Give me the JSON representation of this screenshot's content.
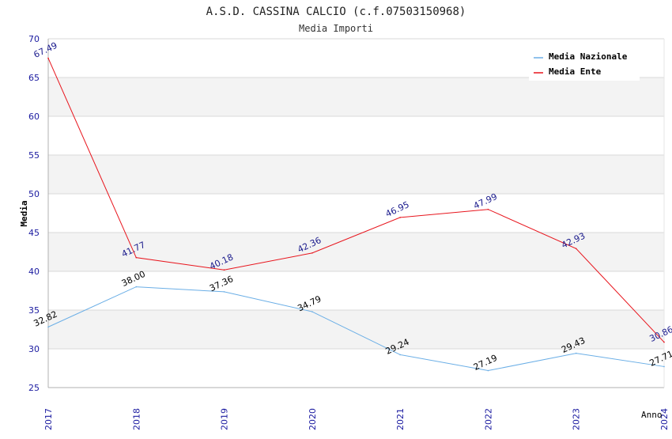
{
  "chart_data": {
    "type": "line",
    "title": "A.S.D. CASSINA CALCIO (c.f.07503150968)",
    "subtitle": "Media Importi",
    "xlabel": "Anno",
    "ylabel": "Media",
    "ylim": [
      25,
      70
    ],
    "yticks": [
      "25",
      "30",
      "35",
      "40",
      "45",
      "50",
      "55",
      "60",
      "65",
      "70"
    ],
    "categories": [
      "2017",
      "2018",
      "2019",
      "2020",
      "2021",
      "2022",
      "2023",
      "2024"
    ],
    "legend_position": "top-right",
    "series": [
      {
        "name": "Media Nazionale",
        "color": "#6aaee6",
        "label_color": "#000000",
        "values": [
          32.82,
          38.0,
          37.36,
          34.79,
          29.24,
          27.19,
          29.43,
          27.71
        ],
        "labels": [
          "32.82",
          "38.00",
          "37.36",
          "34.79",
          "29.24",
          "27.19",
          "29.43",
          "27.71"
        ]
      },
      {
        "name": "Media Ente",
        "color": "#e8141c",
        "label_color": "#1a1a8c",
        "values": [
          67.49,
          41.77,
          40.18,
          42.36,
          46.95,
          47.99,
          42.93,
          30.86
        ],
        "labels": [
          "67.49",
          "41.77",
          "40.18",
          "42.36",
          "46.95",
          "47.99",
          "42.93",
          "30.86"
        ]
      }
    ],
    "colors": {
      "band": "#f3f3f3",
      "grid": "#d8d8d8",
      "tick_text": "#1a1aa0"
    }
  }
}
